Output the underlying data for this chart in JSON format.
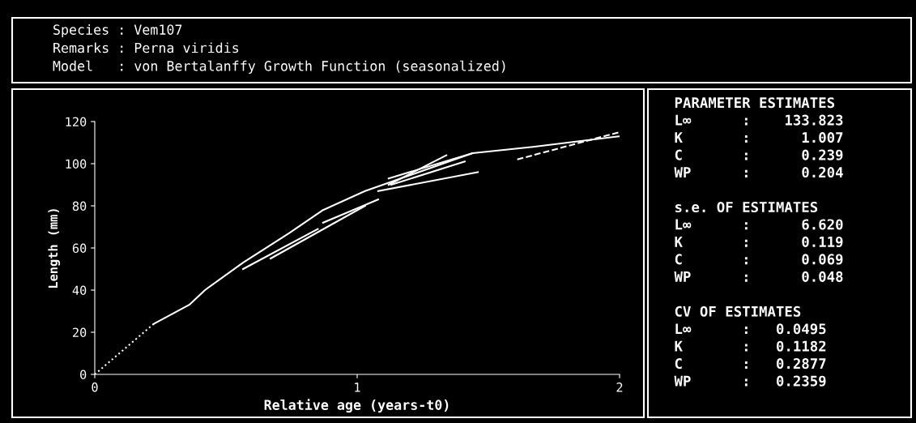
{
  "chart_data": [
    {
      "type": "other",
      "annotations": [
        "Species : Vem107",
        "Remarks : Perna viridis",
        "Model   : von Bertalanffy Growth Function (seasonalized)"
      ]
    },
    {
      "type": "line",
      "xlabel": "Relative age (years-t0)",
      "ylabel": "Length (mm)",
      "xlim": [
        0,
        2
      ],
      "ylim": [
        0,
        120
      ],
      "xticks": [
        0,
        1,
        2
      ],
      "yticks": [
        0,
        20,
        40,
        60,
        80,
        100,
        120
      ],
      "grid": false,
      "legend": false,
      "marker": "none",
      "series": [
        {
          "color": "#ffffff",
          "line_style": "dotted",
          "x": [
            0,
            0.225
          ],
          "values": [
            0,
            24
          ]
        },
        {
          "color": "#ffffff",
          "line_style": "solid",
          "x": [
            0.225,
            0.36,
            0.42,
            0.565,
            0.74,
            0.87,
            1.03,
            1.44,
            1.67,
            2.0
          ],
          "values": [
            24,
            33,
            40,
            53,
            67,
            78,
            87,
            105,
            108,
            113
          ]
        },
        {
          "color": "#ffffff",
          "line_style": "solid",
          "x": [
            0.565,
            0.85
          ],
          "values": [
            50,
            69
          ]
        },
        {
          "color": "#ffffff",
          "line_style": "solid",
          "x": [
            0.67,
            1.03
          ],
          "values": [
            55,
            80
          ]
        },
        {
          "color": "#ffffff",
          "line_style": "solid",
          "x": [
            0.87,
            1.08
          ],
          "values": [
            72,
            83
          ]
        },
        {
          "color": "#ffffff",
          "line_style": "solid",
          "x": [
            1.08,
            1.46
          ],
          "values": [
            87,
            96
          ]
        },
        {
          "color": "#ffffff",
          "line_style": "solid",
          "x": [
            1.12,
            1.34
          ],
          "values": [
            90,
            104
          ]
        },
        {
          "color": "#ffffff",
          "line_style": "solid",
          "x": [
            1.12,
            1.44
          ],
          "values": [
            93,
            105
          ]
        },
        {
          "color": "#ffffff",
          "line_style": "solid",
          "x": [
            1.13,
            1.41
          ],
          "values": [
            90,
            101
          ]
        },
        {
          "color": "#ffffff",
          "line_style": "dashed",
          "x": [
            1.61,
            2.0
          ],
          "values": [
            102,
            115
          ]
        }
      ]
    },
    {
      "type": "other",
      "annotations": [
        "PARAMETER ESTIMATES",
        "L∞      :    133.823",
        "K       :      1.007",
        "C       :      0.239",
        "WP      :      0.204",
        "s.e. OF ESTIMATES",
        "L∞      :      6.620",
        "K       :      0.119",
        "C       :      0.069",
        "WP      :      0.048",
        "CV OF ESTIMATES",
        "L∞      :   0.0495",
        "K       :   0.1182",
        "C       :   0.2877",
        "WP      :   0.2359"
      ]
    }
  ]
}
